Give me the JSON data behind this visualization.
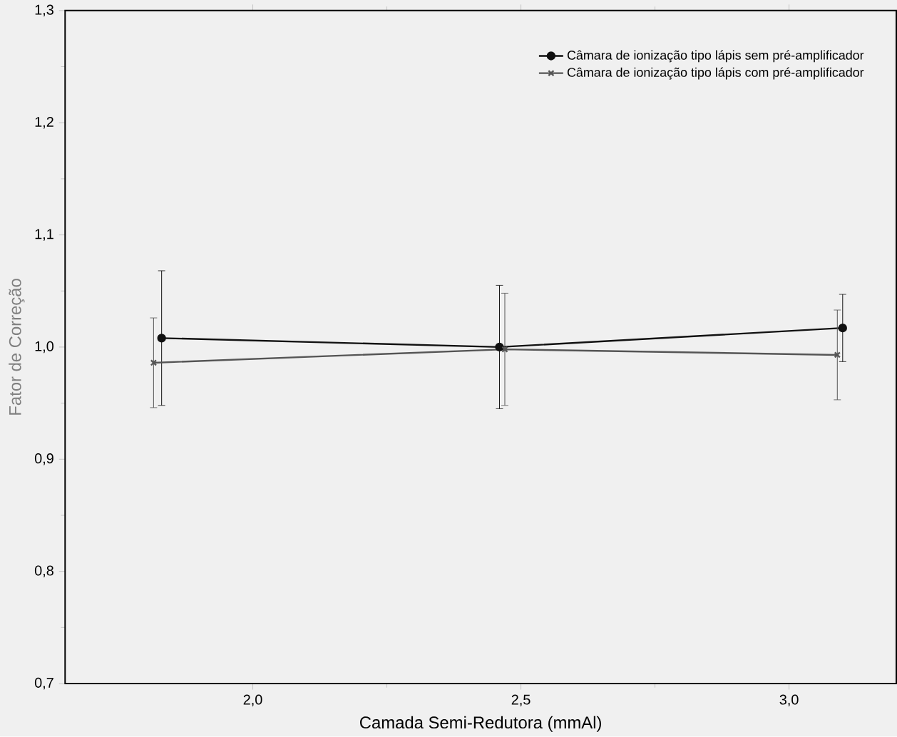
{
  "chart_data": {
    "type": "line",
    "xlabel": "Camada Semi-Redutora (mmAl)",
    "ylabel": "Fator de Correção",
    "x": [
      1.83,
      2.46,
      3.1
    ],
    "series": [
      {
        "name": "Câmara de ionização tipo lápis sem pré-amplificador",
        "color": "#111111",
        "marker": "circle",
        "values": [
          1.008,
          1.0,
          1.017
        ],
        "errors": [
          0.06,
          0.055,
          0.03
        ]
      },
      {
        "name": "Câmara de ionização tipo lápis com pré-amplificador",
        "color": "#555555",
        "x": [
          1.815,
          2.47,
          3.09
        ],
        "marker": "cross",
        "values": [
          0.986,
          0.998,
          0.993
        ],
        "errors": [
          0.04,
          0.05,
          0.04
        ]
      }
    ],
    "xlim": [
      1.65,
      3.2
    ],
    "ylim": [
      0.7,
      1.3
    ],
    "xticks": [
      {
        "value": 2.0,
        "label": "2,0"
      },
      {
        "value": 2.5,
        "label": "2,5"
      },
      {
        "value": 3.0,
        "label": "3,0"
      }
    ],
    "yticks": [
      {
        "value": 0.7,
        "label": "0,7"
      },
      {
        "value": 0.8,
        "label": "0,8"
      },
      {
        "value": 0.9,
        "label": "0,9"
      },
      {
        "value": 1.0,
        "label": "1,0"
      },
      {
        "value": 1.1,
        "label": "1,1"
      },
      {
        "value": 1.2,
        "label": "1,2"
      },
      {
        "value": 1.3,
        "label": "1,3"
      }
    ],
    "legend": "top right",
    "grid": false,
    "line_style": "solid"
  }
}
